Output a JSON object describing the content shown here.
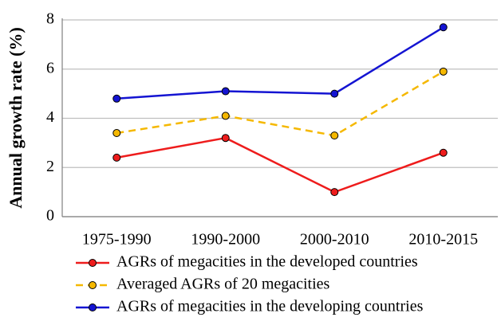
{
  "chart_data": {
    "type": "line",
    "y_label": "Annual growth rate (%)",
    "categories": [
      "1975-1990",
      "1990-2000",
      "2000-2010",
      "2010-2015"
    ],
    "series": [
      {
        "name": "AGRs of megacities in the developed countries",
        "color": "#ee1c1c",
        "line_style": "solid",
        "values": [
          2.4,
          3.2,
          1.0,
          2.6
        ]
      },
      {
        "name": "Averaged AGRs of 20 megacities",
        "color": "#f5b800",
        "line_style": "dashed",
        "values": [
          3.4,
          4.1,
          3.3,
          5.9
        ]
      },
      {
        "name": "AGRs of megacities in the developing countries",
        "color": "#1414d2",
        "line_style": "solid",
        "values": [
          4.8,
          5.1,
          5.0,
          7.7
        ]
      }
    ],
    "ylim": [
      0,
      8
    ],
    "yticks": [
      0,
      2,
      4,
      6,
      8
    ],
    "grid": true,
    "legend": "bottom"
  }
}
